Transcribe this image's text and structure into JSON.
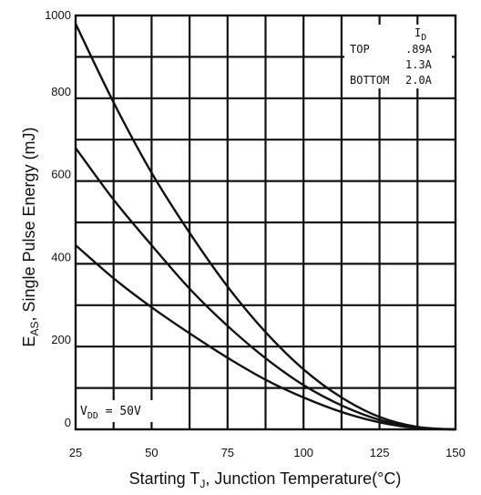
{
  "chart_data": {
    "type": "line",
    "title": "",
    "xlabel": {
      "prefix": "Starting T",
      "sub": "J",
      "suffix": ", Junction Temperature(°C)"
    },
    "ylabel": {
      "prefix": "E",
      "sub": "AS",
      "suffix": ", Single Pulse Energy (mJ)"
    },
    "xlim": [
      25,
      150
    ],
    "ylim": [
      0,
      1000
    ],
    "xticks": [
      25,
      50,
      75,
      100,
      125,
      150
    ],
    "yticks": [
      0,
      200,
      400,
      600,
      800,
      1000
    ],
    "grid": true,
    "grid_x_step": 12.5,
    "grid_y_step": 100,
    "legend": {
      "placement": "top-right",
      "header": {
        "main": "I",
        "sub": "D"
      },
      "rows": [
        {
          "label": "TOP",
          "value": ".89A"
        },
        {
          "label": "",
          "value": "1.3A"
        },
        {
          "label": "BOTTOM",
          "value": "2.0A"
        }
      ]
    },
    "annotation": {
      "placement": "bottom-left",
      "main": "V",
      "sub": "DD",
      "rest": " = 50V"
    },
    "series": [
      {
        "value": ".89A",
        "x": [
          25,
          37.5,
          50,
          62.5,
          75,
          87.5,
          100,
          112.5,
          125,
          137.5,
          150
        ],
        "y": [
          980,
          790,
          620,
          475,
          345,
          235,
          145,
          77,
          30,
          6,
          0
        ]
      },
      {
        "value": "1.3A",
        "x": [
          25,
          37.5,
          50,
          62.5,
          75,
          87.5,
          100,
          112.5,
          125,
          137.5,
          150
        ],
        "y": [
          680,
          555,
          445,
          340,
          250,
          172,
          107,
          58,
          23,
          4,
          0
        ]
      },
      {
        "value": "2.0A",
        "x": [
          25,
          37.5,
          50,
          62.5,
          75,
          87.5,
          100,
          112.5,
          125,
          137.5,
          150
        ],
        "y": [
          445,
          365,
          295,
          232,
          173,
          120,
          77,
          42,
          17,
          3,
          0
        ]
      }
    ]
  }
}
